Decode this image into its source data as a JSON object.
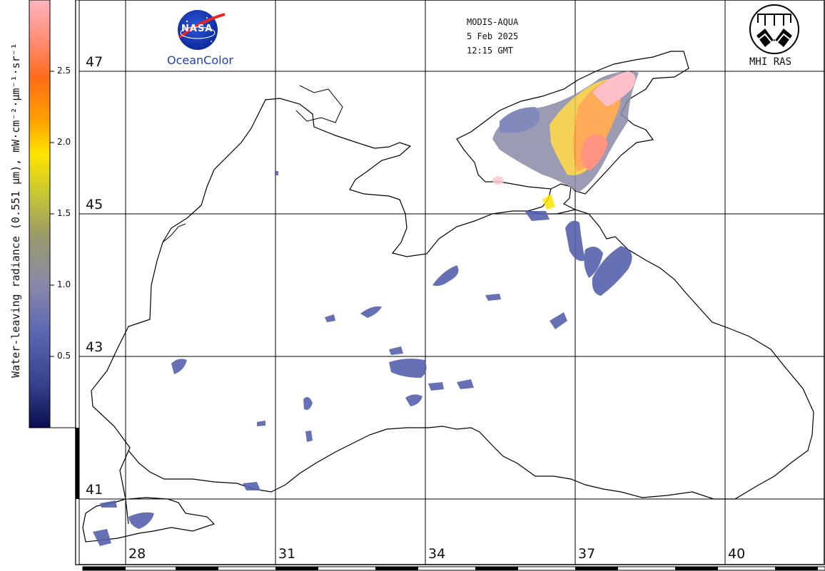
{
  "header": {
    "satellite": "MODIS-AQUA",
    "date": "5 Feb 2025",
    "time": "12:15 GMT"
  },
  "logos": {
    "nasa_text": "NASA",
    "oceancolor": "OceanColor",
    "mhi": "MHI RAS"
  },
  "colorbar": {
    "title": "Water-leaving radiance (0.551 µm), mW·cm⁻²·µm⁻¹·sr⁻¹",
    "ticks": [
      "2.5",
      "2.0",
      "1.5",
      "1.0",
      "0.5"
    ],
    "colors": [
      "#ffb4bf",
      "#ff7a5a",
      "#ff6b1a",
      "#ffa000",
      "#ffe400",
      "#c8c832",
      "#9a9a6a",
      "#8a8aa8",
      "#5a66b4",
      "#35418c",
      "#0b0d4e"
    ]
  },
  "grid": {
    "latitudes": [
      "47",
      "45",
      "43",
      "41"
    ],
    "longitudes": [
      "28",
      "31",
      "34",
      "37",
      "40"
    ]
  }
}
